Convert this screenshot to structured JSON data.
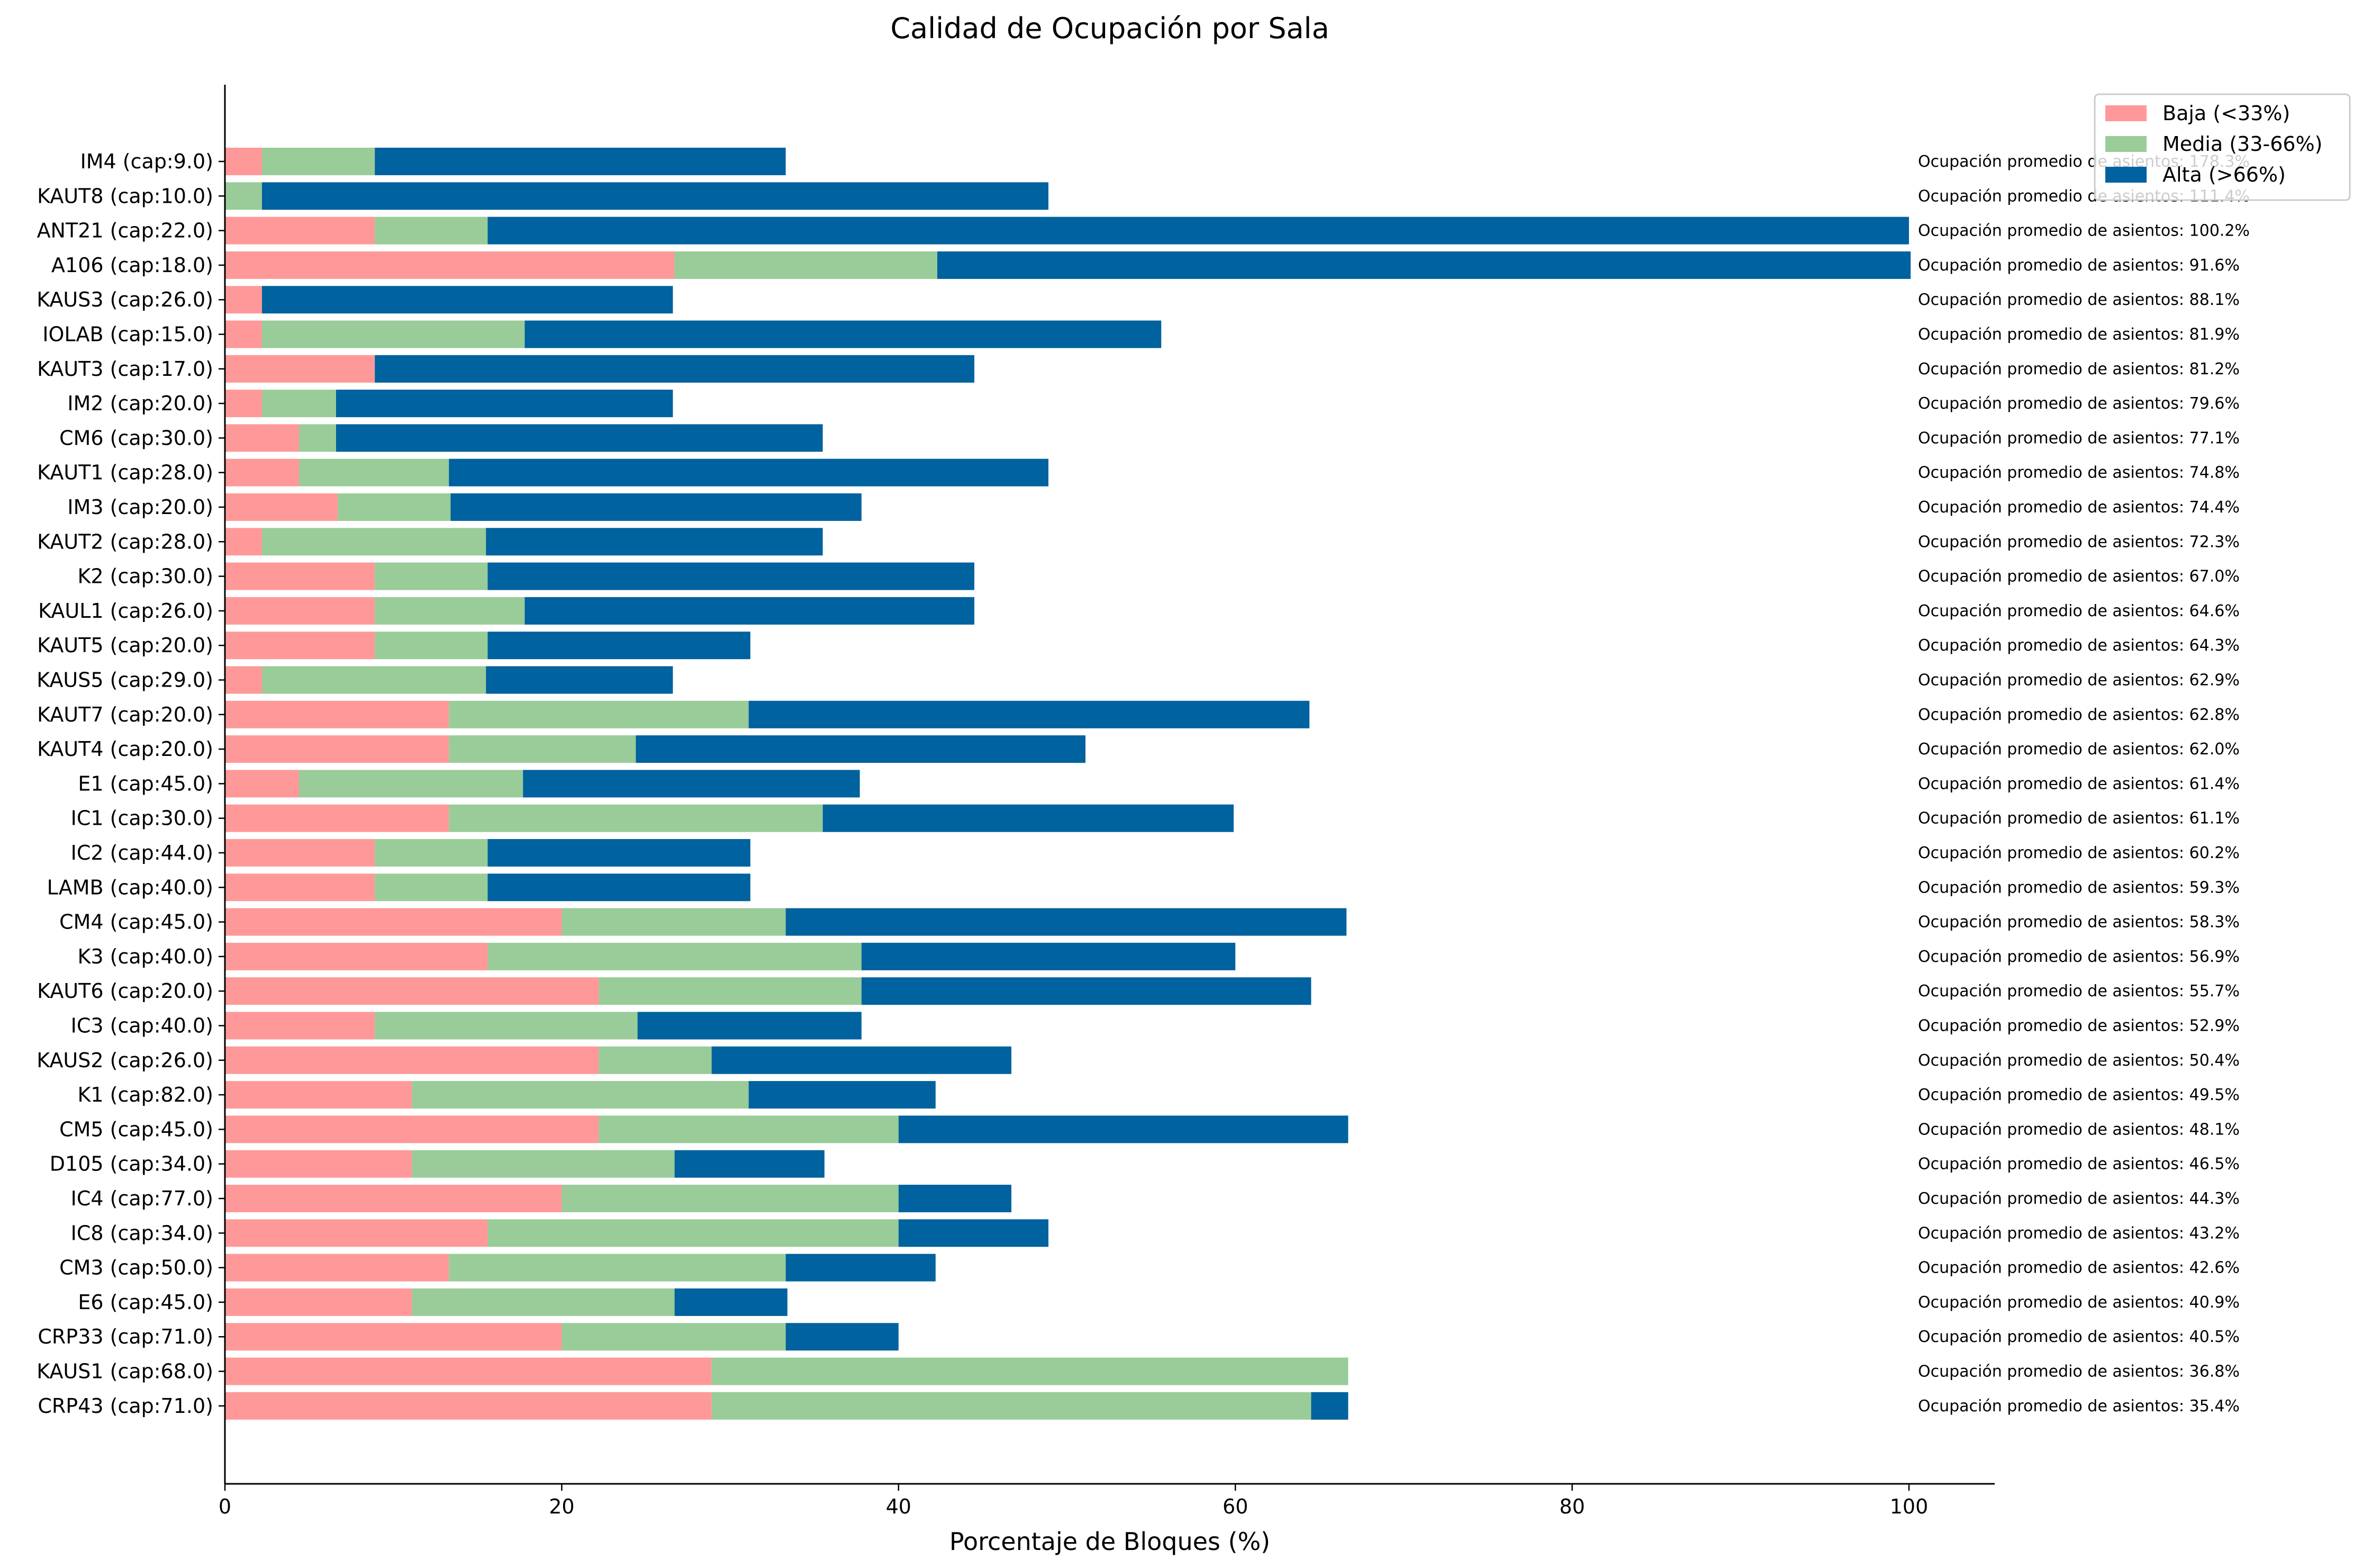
{
  "chart_data": {
    "type": "bar",
    "orientation": "horizontal",
    "stacked": true,
    "title": "Calidad de Ocupación por Sala",
    "xlabel": "Porcentaje de Bloques (%)",
    "ylabel": "",
    "xlim": [
      0,
      105
    ],
    "xticks": [
      "0",
      "20",
      "40",
      "60",
      "80",
      "100"
    ],
    "legend_position": "top-right",
    "grid": false,
    "categories": [
      "IM4 (cap:9.0)",
      "KAUT8 (cap:10.0)",
      "ANT21 (cap:22.0)",
      "A106 (cap:18.0)",
      "KAUS3 (cap:26.0)",
      "IOLAB (cap:15.0)",
      "KAUT3 (cap:17.0)",
      "IM2 (cap:20.0)",
      "CM6 (cap:30.0)",
      "KAUT1 (cap:28.0)",
      "IM3 (cap:20.0)",
      "KAUT2 (cap:28.0)",
      "K2 (cap:30.0)",
      "KAUL1 (cap:26.0)",
      "KAUT5 (cap:20.0)",
      "KAUS5 (cap:29.0)",
      "KAUT7 (cap:20.0)",
      "KAUT4 (cap:20.0)",
      "E1 (cap:45.0)",
      "IC1 (cap:30.0)",
      "IC2 (cap:44.0)",
      "LAMB (cap:40.0)",
      "CM4 (cap:45.0)",
      "K3 (cap:40.0)",
      "KAUT6 (cap:20.0)",
      "IC3 (cap:40.0)",
      "KAUS2 (cap:26.0)",
      "K1 (cap:82.0)",
      "CM5 (cap:45.0)",
      "D105 (cap:34.0)",
      "IC4 (cap:77.0)",
      "IC8 (cap:34.0)",
      "CM3 (cap:50.0)",
      "E6 (cap:45.0)",
      "CRP33 (cap:71.0)",
      "KAUS1 (cap:68.0)",
      "CRP43 (cap:71.0)"
    ],
    "series": [
      {
        "name": "Baja (<33%)",
        "color": "#ff9999",
        "values": [
          2.2,
          0,
          8.9,
          26.7,
          2.2,
          2.2,
          8.9,
          2.2,
          4.4,
          4.4,
          6.7,
          2.2,
          8.9,
          8.9,
          8.9,
          2.2,
          13.3,
          13.3,
          4.4,
          13.3,
          8.9,
          8.9,
          20.0,
          15.6,
          22.2,
          8.9,
          22.2,
          11.1,
          22.2,
          11.1,
          20.0,
          15.6,
          13.3,
          11.1,
          20.0,
          28.9,
          28.9
        ]
      },
      {
        "name": "Media (33-66%)",
        "color": "#99cc99",
        "values": [
          6.7,
          2.2,
          6.7,
          15.6,
          0,
          15.6,
          0,
          4.4,
          2.2,
          8.9,
          6.7,
          13.3,
          6.7,
          8.9,
          6.7,
          13.3,
          17.8,
          11.1,
          13.3,
          22.2,
          6.7,
          6.7,
          13.3,
          22.2,
          15.6,
          15.6,
          6.7,
          20.0,
          17.8,
          15.6,
          20.0,
          24.4,
          20.0,
          15.6,
          13.3,
          37.8,
          35.6
        ]
      },
      {
        "name": "Alta (>66%)",
        "color": "#00629e",
        "values": [
          24.4,
          46.7,
          84.4,
          57.8,
          24.4,
          37.8,
          35.6,
          20.0,
          28.9,
          35.6,
          24.4,
          20.0,
          28.9,
          26.7,
          15.6,
          11.1,
          33.3,
          26.7,
          20.0,
          24.4,
          15.6,
          15.6,
          33.3,
          22.2,
          26.7,
          13.3,
          17.8,
          11.1,
          26.7,
          8.9,
          6.7,
          8.9,
          8.9,
          6.7,
          6.7,
          0,
          2.2
        ]
      }
    ],
    "annotations": [
      "Ocupación promedio de asientos: 178.3%",
      "Ocupación promedio de asientos: 111.4%",
      "Ocupación promedio de asientos: 100.2%",
      "Ocupación promedio de asientos: 91.6%",
      "Ocupación promedio de asientos: 88.1%",
      "Ocupación promedio de asientos: 81.9%",
      "Ocupación promedio de asientos: 81.2%",
      "Ocupación promedio de asientos: 79.6%",
      "Ocupación promedio de asientos: 77.1%",
      "Ocupación promedio de asientos: 74.8%",
      "Ocupación promedio de asientos: 74.4%",
      "Ocupación promedio de asientos: 72.3%",
      "Ocupación promedio de asientos: 67.0%",
      "Ocupación promedio de asientos: 64.6%",
      "Ocupación promedio de asientos: 64.3%",
      "Ocupación promedio de asientos: 62.9%",
      "Ocupación promedio de asientos: 62.8%",
      "Ocupación promedio de asientos: 62.0%",
      "Ocupación promedio de asientos: 61.4%",
      "Ocupación promedio de asientos: 61.1%",
      "Ocupación promedio de asientos: 60.2%",
      "Ocupación promedio de asientos: 59.3%",
      "Ocupación promedio de asientos: 58.3%",
      "Ocupación promedio de asientos: 56.9%",
      "Ocupación promedio de asientos: 55.7%",
      "Ocupación promedio de asientos: 52.9%",
      "Ocupación promedio de asientos: 50.4%",
      "Ocupación promedio de asientos: 49.5%",
      "Ocupación promedio de asientos: 48.1%",
      "Ocupación promedio de asientos: 46.5%",
      "Ocupación promedio de asientos: 44.3%",
      "Ocupación promedio de asientos: 43.2%",
      "Ocupación promedio de asientos: 42.6%",
      "Ocupación promedio de asientos: 40.9%",
      "Ocupación promedio de asientos: 40.5%",
      "Ocupación promedio de asientos: 36.8%",
      "Ocupación promedio de asientos: 35.4%"
    ]
  }
}
